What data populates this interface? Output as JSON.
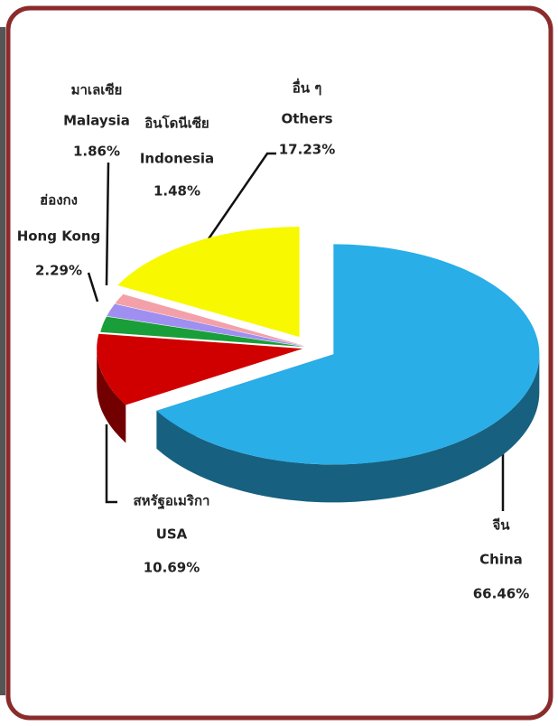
{
  "chart_data": {
    "type": "pie",
    "categories": [
      "China",
      "USA",
      "Hong Kong",
      "Malaysia",
      "Indonesia",
      "Others"
    ],
    "categories_thai": [
      "จีน",
      "สหรัฐอเมริกา",
      "ฮ่องกง",
      "มาเลเซีย",
      "อินโดนีเซีย",
      "อื่น ๆ"
    ],
    "values": [
      66.46,
      10.69,
      2.29,
      1.86,
      1.48,
      17.23
    ],
    "value_labels": [
      "66.46%",
      "10.69%",
      "2.29%",
      "1.86%",
      "1.48%",
      "17.23%"
    ],
    "colors": [
      "#29aee8",
      "#d10000",
      "#1a9e3a",
      "#9f8ff0",
      "#f4a0a8",
      "#f8f800"
    ]
  }
}
